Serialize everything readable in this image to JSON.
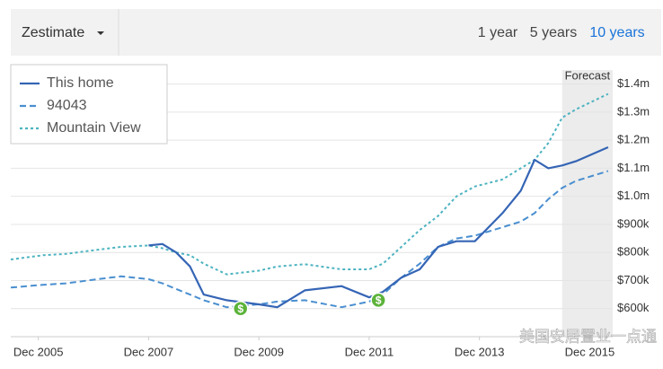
{
  "header": {
    "dropdown": "Zestimate",
    "ranges": [
      "1 year",
      "5 years",
      "10 years"
    ],
    "selected_range": 2
  },
  "chart_data": {
    "type": "line",
    "x": [
      "2005-06",
      "2006-01",
      "2006-06",
      "2007-01",
      "2007-06",
      "2007-12",
      "2008-03",
      "2008-06",
      "2008-09",
      "2008-12",
      "2009-05",
      "2009-12",
      "2010-04",
      "2010-10",
      "2011-06",
      "2011-12",
      "2012-03",
      "2012-07",
      "2012-11",
      "2013-03",
      "2013-07",
      "2013-11",
      "2014-05",
      "2014-09",
      "2014-12",
      "2015-03",
      "2015-06",
      "2015-09",
      "2016-04"
    ],
    "series": [
      {
        "name": "This home",
        "color": "#3565b5",
        "style": "solid",
        "values": [
          null,
          null,
          null,
          null,
          null,
          825000,
          830000,
          800000,
          750000,
          650000,
          630000,
          615000,
          605000,
          665000,
          680000,
          640000,
          660000,
          710000,
          740000,
          820000,
          840000,
          840000,
          940000,
          1020000,
          1130000,
          1100000,
          1110000,
          1125000,
          1175000
        ]
      },
      {
        "name": "94043",
        "color": "#4a8fd0",
        "style": "dashed",
        "values": [
          675000,
          685000,
          690000,
          705000,
          715000,
          705000,
          690000,
          670000,
          650000,
          630000,
          605000,
          615000,
          625000,
          630000,
          605000,
          625000,
          650000,
          710000,
          760000,
          820000,
          850000,
          860000,
          890000,
          910000,
          940000,
          990000,
          1030000,
          1055000,
          1090000
        ]
      },
      {
        "name": "Mountain View",
        "color": "#4db3c0",
        "style": "dotted",
        "values": [
          775000,
          790000,
          795000,
          810000,
          820000,
          825000,
          815000,
          800000,
          790000,
          760000,
          722000,
          735000,
          750000,
          758000,
          740000,
          740000,
          760000,
          820000,
          880000,
          930000,
          1000000,
          1035000,
          1060000,
          1100000,
          1130000,
          1190000,
          1280000,
          1310000,
          1365000
        ]
      }
    ],
    "xlim": [
      "2005-06",
      "2016-05"
    ],
    "xticks": [
      {
        "value": "2005-12",
        "label": "Dec 2005"
      },
      {
        "value": "2007-12",
        "label": "Dec 2007"
      },
      {
        "value": "2009-12",
        "label": "Dec 2009"
      },
      {
        "value": "2011-12",
        "label": "Dec 2011"
      },
      {
        "value": "2013-12",
        "label": "Dec 2013"
      },
      {
        "value": "2015-12",
        "label": "Dec 2015"
      }
    ],
    "ylim": [
      500000,
      1450000
    ],
    "yticks": [
      {
        "value": 600000,
        "label": "$600k"
      },
      {
        "value": 700000,
        "label": "$700k"
      },
      {
        "value": 800000,
        "label": "$800k"
      },
      {
        "value": 900000,
        "label": "$900k"
      },
      {
        "value": 1000000,
        "label": "$1.0m"
      },
      {
        "value": 1100000,
        "label": "$1.1m"
      },
      {
        "value": 1200000,
        "label": "$1.2m"
      },
      {
        "value": 1300000,
        "label": "$1.3m"
      },
      {
        "value": 1400000,
        "label": "$1.4m"
      }
    ],
    "grid": true,
    "legend": "top-left",
    "forecast": {
      "label": "Forecast",
      "start": "2015-06"
    },
    "sales": [
      {
        "x": "2009-08",
        "value": 600000,
        "label": "$"
      },
      {
        "x": "2012-02",
        "value": 630000,
        "label": "$"
      }
    ],
    "watermark": "美国安居置业一点通"
  }
}
